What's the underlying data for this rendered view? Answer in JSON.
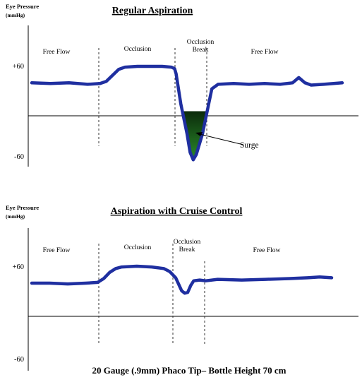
{
  "chart_data": [
    {
      "type": "line",
      "title": "Regular Aspiration",
      "ylabel": "Eye Pressure",
      "yunit": "(mmHg)",
      "ylim": [
        -80,
        100
      ],
      "yticks": [
        {
          "value": 60,
          "label": "+60"
        },
        {
          "value": -60,
          "label": "-60"
        }
      ],
      "phases": [
        "Free Flow",
        "Occlusion",
        "Occlusion\nBreak",
        "Free Flow"
      ],
      "phase_boundaries": [
        0.23,
        0.47,
        0.57
      ],
      "annotations": [
        {
          "text": "Surge"
        }
      ],
      "series": [
        {
          "line_color": "#1f2fa0",
          "fill_color": "#1c5a1c",
          "x": [
            0.0,
            0.06,
            0.12,
            0.18,
            0.22,
            0.24,
            0.26,
            0.28,
            0.3,
            0.34,
            0.38,
            0.42,
            0.45,
            0.46,
            0.465,
            0.48,
            0.5,
            0.51,
            0.52,
            0.53,
            0.55,
            0.57,
            0.58,
            0.6,
            0.65,
            0.7,
            0.75,
            0.8,
            0.84,
            0.86,
            0.88,
            0.9,
            0.94,
            1.0
          ],
          "y": [
            38,
            37,
            38,
            36,
            37,
            40,
            48,
            56,
            59,
            60,
            60,
            60,
            59,
            57,
            50,
            10,
            -30,
            -55,
            -65,
            -58,
            -30,
            10,
            30,
            36,
            37,
            36,
            37,
            36,
            38,
            45,
            38,
            35,
            36,
            38
          ]
        }
      ]
    },
    {
      "type": "line",
      "title": "Aspiration with Cruise Control",
      "ylabel": "Eye Pressure",
      "yunit": "(mmHg)",
      "ylim": [
        -80,
        100
      ],
      "yticks": [
        {
          "value": 60,
          "label": "+60"
        },
        {
          "value": -60,
          "label": "-60"
        }
      ],
      "phases": [
        "Free Flow",
        "Occlusion",
        "Occlusion\nBreak",
        "Free Flow"
      ],
      "phase_boundaries": [
        0.23,
        0.47,
        0.57
      ],
      "series": [
        {
          "line_color": "#1f2fa0",
          "x": [
            0.0,
            0.06,
            0.12,
            0.18,
            0.22,
            0.24,
            0.26,
            0.28,
            0.3,
            0.35,
            0.4,
            0.44,
            0.46,
            0.48,
            0.5,
            0.51,
            0.52,
            0.53,
            0.54,
            0.56,
            0.58,
            0.62,
            0.7,
            0.78,
            0.86,
            0.92,
            0.96,
            1.0
          ],
          "y": [
            38,
            38,
            37,
            38,
            39,
            44,
            52,
            57,
            59,
            60,
            59,
            57,
            53,
            45,
            28,
            25,
            26,
            35,
            41,
            42,
            41,
            43,
            42,
            43,
            44,
            45,
            46,
            45
          ]
        }
      ]
    }
  ],
  "caption": "20 Gauge (.9mm) Phaco Tip– Bottle Height 70 cm"
}
